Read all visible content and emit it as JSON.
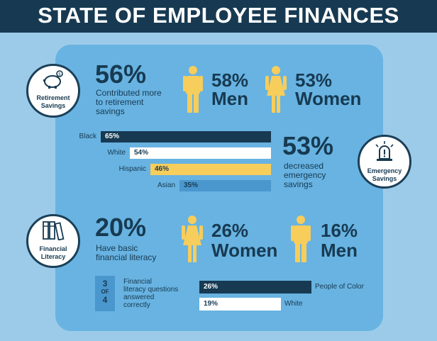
{
  "title": "STATE OF EMPLOYEE FINANCES",
  "retirement": {
    "badge": [
      "Retirement",
      "Savings"
    ],
    "headline": "56%",
    "desc": [
      "Contributed more",
      "to retirement",
      "savings"
    ],
    "men_pct": "58%",
    "men_label": "Men",
    "women_pct": "53%",
    "women_label": "Women"
  },
  "emergency": {
    "badge": [
      "Emergency",
      "Savings"
    ],
    "headline": "53%",
    "desc": [
      "decreased",
      "emergency",
      "savings"
    ]
  },
  "literacy": {
    "badge": [
      "Financial",
      "Literacy"
    ],
    "headline": "20%",
    "desc": [
      "Have basic",
      "financial literacy"
    ],
    "women_pct": "26%",
    "women_label": "Women",
    "men_pct": "16%",
    "men_label": "Men",
    "score_box": [
      "3",
      "OF",
      "4"
    ],
    "score_desc": [
      "Financial",
      "literacy questions",
      "answered",
      "correctly"
    ]
  },
  "colors": {
    "navy": "#173a52",
    "white": "#ffffff",
    "yellow": "#f7cd5b",
    "blue": "#4a97ce",
    "figure": "#f7cd5b"
  },
  "chart_data": [
    {
      "type": "bar",
      "orientation": "horizontal",
      "categories": [
        "Black",
        "White",
        "Hispanic",
        "Asian"
      ],
      "values": [
        65,
        54,
        46,
        35
      ],
      "labels": [
        "65%",
        "54%",
        "46%",
        "35%"
      ],
      "unit": "%"
    },
    {
      "type": "bar",
      "orientation": "horizontal",
      "categories": [
        "People of Color",
        "White"
      ],
      "values": [
        26,
        19
      ],
      "labels": [
        "26%",
        "19%"
      ],
      "unit": "%"
    }
  ]
}
